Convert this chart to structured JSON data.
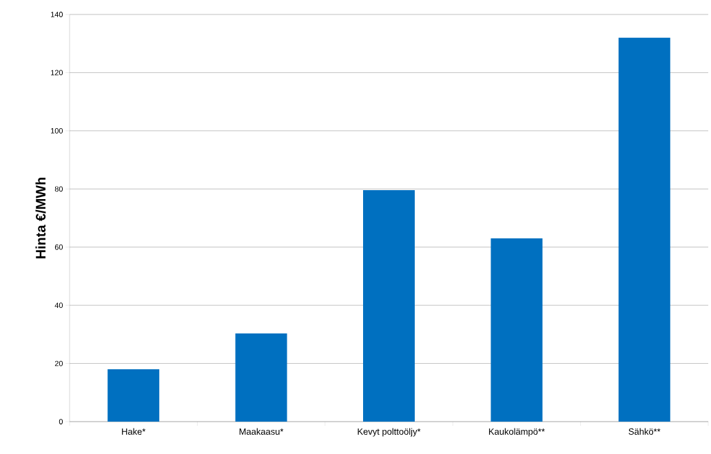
{
  "chart_data": {
    "type": "bar",
    "ylabel": "Hinta €/MWh",
    "categories": [
      "Hake*",
      "Maakaasu*",
      "Kevyt polttoöljy*",
      "Kaukolämpö**",
      "Sähkö**"
    ],
    "values": [
      18,
      30.3,
      79.6,
      63,
      132
    ],
    "color": "#0070c0",
    "ylim": [
      0,
      140
    ],
    "yticks": [
      0,
      20,
      40,
      60,
      80,
      100,
      120,
      140
    ],
    "grid": "y"
  }
}
